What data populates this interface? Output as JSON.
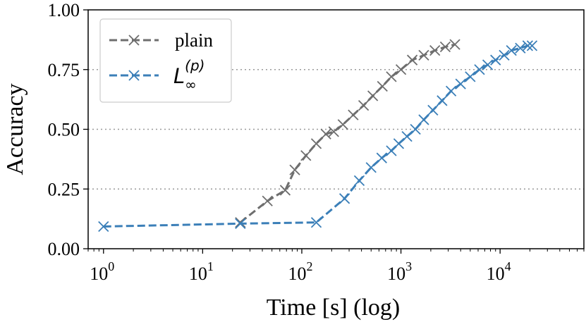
{
  "chart_data": {
    "type": "line",
    "xscale": "log",
    "xlabel": "Time [s] (log)",
    "ylabel": "Accuracy",
    "xlim": [
      0.7,
      70000
    ],
    "ylim": [
      0.0,
      1.0
    ],
    "yticks": [
      0.0,
      0.25,
      0.5,
      0.75,
      1.0
    ],
    "ytick_labels": [
      "0.00",
      "0.25",
      "0.50",
      "0.75",
      "1.00"
    ],
    "xticks": [
      {
        "value": 1,
        "base": "10",
        "exp": "0"
      },
      {
        "value": 10,
        "base": "10",
        "exp": "1"
      },
      {
        "value": 100,
        "base": "10",
        "exp": "2"
      },
      {
        "value": 1000,
        "base": "10",
        "exp": "3"
      },
      {
        "value": 10000,
        "base": "10",
        "exp": "4"
      }
    ],
    "grid": {
      "y": true,
      "x": false,
      "style": "dotted"
    },
    "legend_position": "top-left",
    "series": [
      {
        "name": "plain",
        "color": "#6e6e6e",
        "marker": "x",
        "linestyle": "dashed",
        "x": [
          24,
          45,
          68,
          85,
          110,
          140,
          175,
          210,
          260,
          330,
          420,
          520,
          650,
          800,
          1000,
          1300,
          1700,
          2200,
          2800,
          3500
        ],
        "y": [
          0.11,
          0.2,
          0.245,
          0.33,
          0.39,
          0.44,
          0.48,
          0.49,
          0.52,
          0.56,
          0.6,
          0.64,
          0.68,
          0.72,
          0.75,
          0.79,
          0.81,
          0.83,
          0.845,
          0.855
        ]
      },
      {
        "name_parts": {
          "base": "L",
          "sub": "∞",
          "sup": "(p)"
        },
        "color": "#3b7fb8",
        "marker": "x",
        "linestyle": "dashed",
        "x": [
          1,
          24,
          140,
          270,
          380,
          500,
          640,
          800,
          950,
          1150,
          1400,
          1700,
          2100,
          2600,
          3200,
          4000,
          5000,
          6200,
          7500,
          9000,
          11000,
          13000,
          16000,
          19000,
          21000
        ],
        "y": [
          0.093,
          0.105,
          0.11,
          0.21,
          0.285,
          0.34,
          0.38,
          0.41,
          0.44,
          0.47,
          0.5,
          0.54,
          0.58,
          0.62,
          0.66,
          0.69,
          0.72,
          0.75,
          0.77,
          0.79,
          0.81,
          0.83,
          0.84,
          0.85,
          0.85
        ]
      }
    ]
  }
}
